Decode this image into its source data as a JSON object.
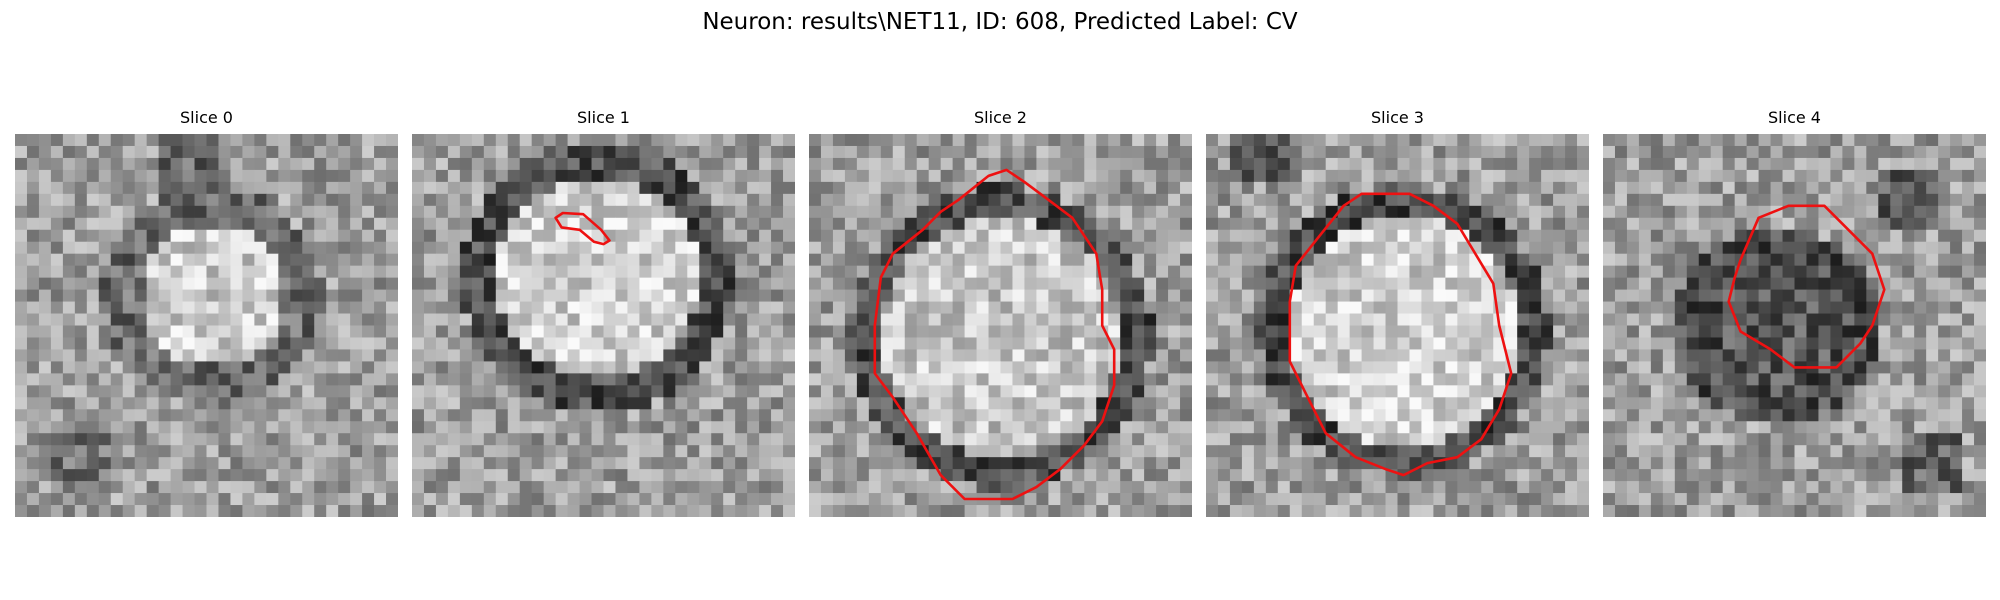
{
  "figure": {
    "title": "Neuron: results\\NET11, ID: 608, Predicted Label: CV"
  },
  "colors": {
    "contour": "#ee1111"
  },
  "panels": [
    {
      "title": "Slice 0",
      "outline": "none",
      "interior": "bright disc with dark ring"
    },
    {
      "title": "Slice 1",
      "outline": "small",
      "interior": "bright disc with dark ring"
    },
    {
      "title": "Slice 2",
      "outline": "large",
      "interior": "bright disc with dark ring"
    },
    {
      "title": "Slice 3",
      "outline": "large",
      "interior": "bright disc with dark ring"
    },
    {
      "title": "Slice 4",
      "outline": "medium",
      "interior": "dark center"
    }
  ]
}
